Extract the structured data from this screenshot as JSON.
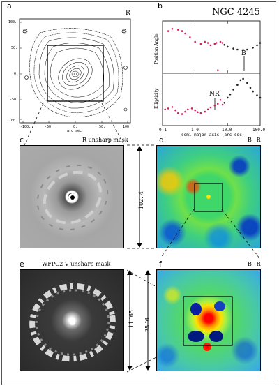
{
  "panels": {
    "a": {
      "letter": "a",
      "band": "R",
      "xticks": [
        "-100.",
        "-50.",
        "0.",
        "50.",
        "100."
      ],
      "yticks": [
        "100.",
        "50.",
        "0.",
        "-50.",
        "-100."
      ],
      "xlabel": "arc sec"
    },
    "b": {
      "letter": "b",
      "title": "NGC 4245",
      "top_ylabel": "Position Angle",
      "bottom_ylabel": "Ellipticity",
      "xlabel": "semi-major axis (arc sec)",
      "xticks": [
        "0.1",
        "1.0",
        "10.0",
        "100.0"
      ],
      "annot_B": "B",
      "annot_NR": "NR"
    },
    "c": {
      "letter": "c",
      "caption": "R unsharp mask",
      "scale": "102.″4"
    },
    "d": {
      "letter": "d",
      "caption": "B−R"
    },
    "e": {
      "letter": "e",
      "caption": "WFPC2 V unsharp mask",
      "scale": "11.″65"
    },
    "f": {
      "letter": "f",
      "caption": "B−R",
      "scale": "25.″6"
    }
  },
  "chart_data": [
    {
      "type": "scatter",
      "title": "NGC 4245",
      "xlabel": "semi-major axis (arc sec)",
      "ylabel": "Position Angle",
      "xscale": "log",
      "xlim": [
        0.1,
        100.0
      ],
      "series": [
        {
          "x": [
            0.15,
            0.2,
            0.3,
            0.4,
            0.5,
            0.7,
            1.0,
            1.5,
            2.0,
            2.5,
            3.0,
            4.0,
            4.5,
            5.0,
            6.0,
            7.0,
            8.0,
            10.0,
            15.0,
            20.0,
            30.0,
            40.0,
            60.0,
            80.0,
            100.0
          ],
          "values": [
            0.85,
            0.9,
            0.88,
            0.85,
            0.8,
            0.72,
            0.62,
            0.58,
            0.62,
            0.6,
            0.55,
            0.58,
            0.6,
            0.02,
            0.62,
            0.6,
            0.56,
            0.52,
            0.48,
            0.46,
            0.45,
            0.46,
            0.5,
            0.55,
            0.6
          ]
        }
      ]
    },
    {
      "type": "scatter",
      "xlabel": "semi-major axis (arc sec)",
      "ylabel": "Ellipticity",
      "xscale": "log",
      "xlim": [
        0.1,
        100.0
      ],
      "series": [
        {
          "x": [
            0.12,
            0.15,
            0.2,
            0.25,
            0.3,
            0.4,
            0.5,
            0.6,
            0.8,
            1.0,
            1.2,
            1.5,
            2.0,
            2.5,
            3.0,
            4.0,
            5.0,
            6.0,
            7.0,
            8.0,
            10.0,
            12.0,
            15.0,
            20.0,
            25.0,
            30.0,
            40.0,
            50.0,
            60.0,
            80.0,
            100.0
          ],
          "values": [
            0.3,
            0.32,
            0.35,
            0.28,
            0.22,
            0.2,
            0.25,
            0.3,
            0.32,
            0.28,
            0.24,
            0.22,
            0.25,
            0.3,
            0.34,
            0.38,
            0.42,
            0.5,
            0.4,
            0.44,
            0.55,
            0.62,
            0.72,
            0.82,
            0.92,
            0.95,
            0.86,
            0.76,
            0.68,
            0.6,
            0.55
          ]
        }
      ]
    }
  ]
}
